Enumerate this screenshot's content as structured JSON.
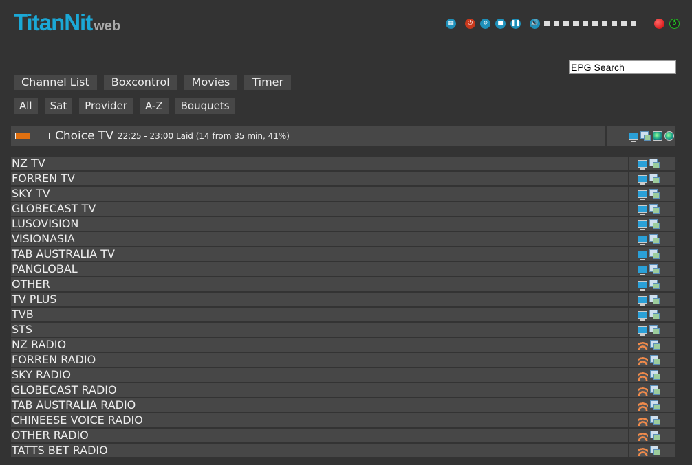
{
  "logo": {
    "text": "TitanNit",
    "suffix": "web"
  },
  "toolbar": {
    "icons": [
      "remote-icon",
      "power-icon",
      "restart-icon",
      "stop-icon",
      "pause-icon",
      "volume-icon"
    ],
    "volume_level": 0,
    "volume_steps": 10,
    "record_icon": "record-icon",
    "signal_icon": "signal-icon"
  },
  "nav": [
    "Channel List",
    "Boxcontrol",
    "Movies",
    "Timer"
  ],
  "subnav": [
    "All",
    "Sat",
    "Provider",
    "A-Z",
    "Bouquets"
  ],
  "search": {
    "value": "EPG Search"
  },
  "current": {
    "channel": "Choice TV",
    "epg": "22:25 - 23:00 Laid (14 from 35 min, 41%)",
    "progress_percent": 41,
    "icons": [
      "tv-icon",
      "multi-icon",
      "epg-icon",
      "globe-icon"
    ]
  },
  "colors": {
    "accent": "#1ba8d6",
    "progress": "#e07010"
  },
  "channels": [
    {
      "name": "NZ TV",
      "type": "tv"
    },
    {
      "name": "FORREN TV",
      "type": "tv"
    },
    {
      "name": "SKY TV",
      "type": "tv"
    },
    {
      "name": "GLOBECAST TV",
      "type": "tv"
    },
    {
      "name": "LUSOVISION",
      "type": "tv"
    },
    {
      "name": "VISIONASIA",
      "type": "tv"
    },
    {
      "name": "TAB AUSTRALIA TV",
      "type": "tv"
    },
    {
      "name": "PANGLOBAL",
      "type": "tv"
    },
    {
      "name": "OTHER",
      "type": "tv"
    },
    {
      "name": "TV PLUS",
      "type": "tv"
    },
    {
      "name": "TVB",
      "type": "tv"
    },
    {
      "name": "STS",
      "type": "tv"
    },
    {
      "name": "NZ RADIO",
      "type": "radio"
    },
    {
      "name": "FORREN RADIO",
      "type": "radio"
    },
    {
      "name": "SKY RADIO",
      "type": "radio"
    },
    {
      "name": "GLOBECAST RADIO",
      "type": "radio"
    },
    {
      "name": "TAB AUSTRALIA RADIO",
      "type": "radio"
    },
    {
      "name": "CHINEESE VOICE RADIO",
      "type": "radio"
    },
    {
      "name": "OTHER RADIO",
      "type": "radio"
    },
    {
      "name": "TATTS BET RADIO",
      "type": "radio"
    }
  ]
}
